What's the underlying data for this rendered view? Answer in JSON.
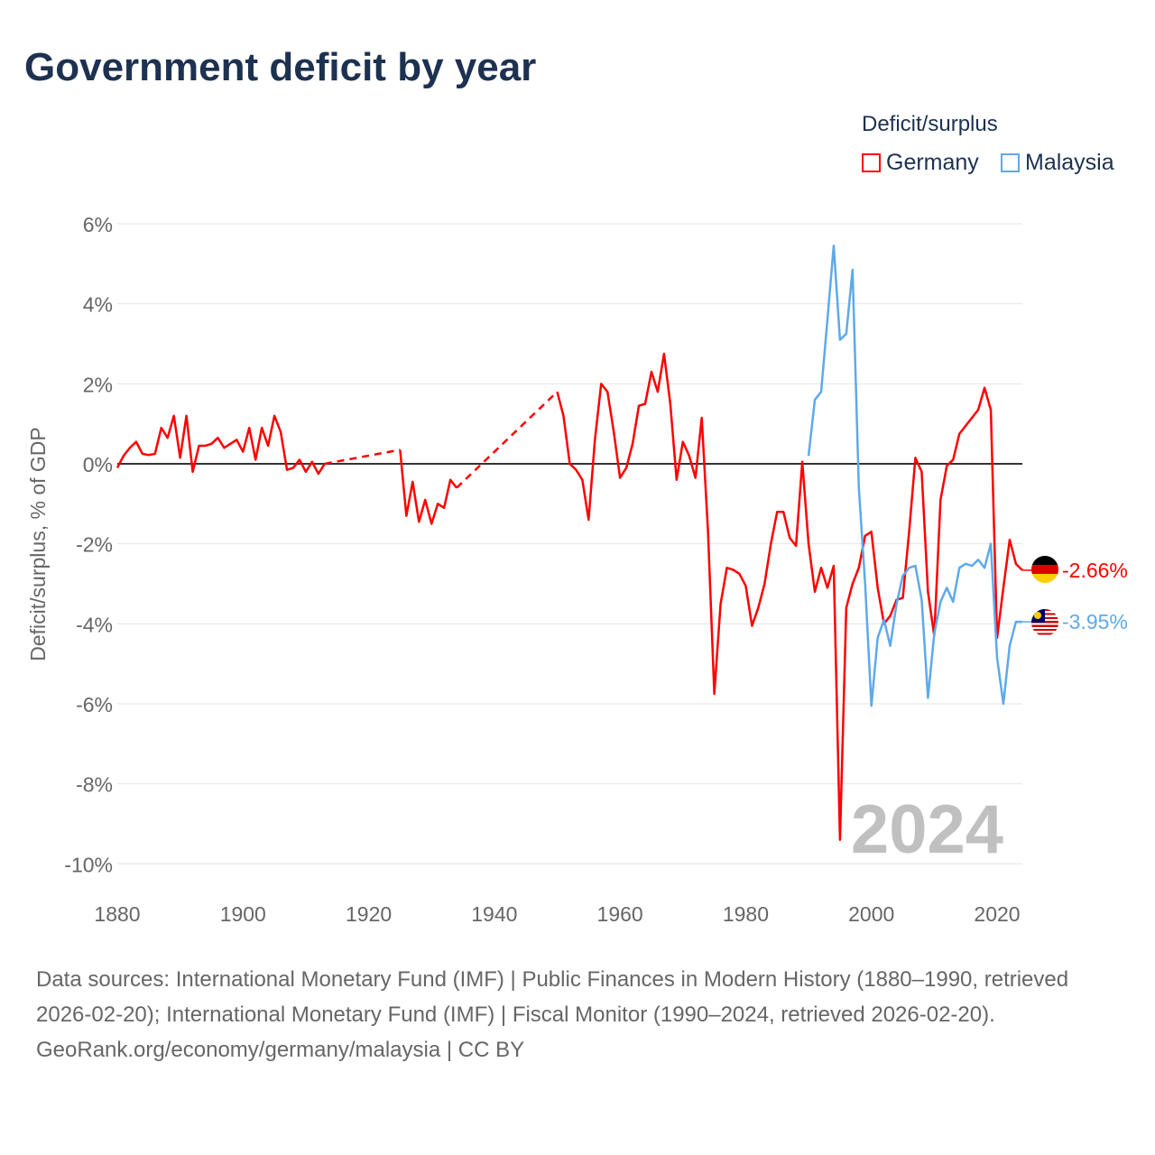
{
  "chart_data": {
    "type": "line",
    "title": "Government deficit by year",
    "ylabel": "Deficit/surplus, % of GDP",
    "xlabel": "",
    "xlim": [
      1880,
      2024
    ],
    "ylim": [
      -10,
      6
    ],
    "xticks": [
      1880,
      1900,
      1920,
      1940,
      1960,
      1980,
      2000,
      2020
    ],
    "xtick_labels": [
      "1880",
      "1900",
      "1920",
      "1940",
      "1960",
      "1980",
      "2000",
      "2020"
    ],
    "yticks": [
      6,
      4,
      2,
      0,
      -2,
      -4,
      -6,
      -8,
      -10
    ],
    "ytick_labels": [
      "6%",
      "4%",
      "2%",
      "0%",
      "-2%",
      "-4%",
      "-6%",
      "-8%",
      "-10%"
    ],
    "grid": true,
    "legend_title": "Deficit/surplus",
    "legend_placement": "top-right",
    "year_label": "2024",
    "series": [
      {
        "name": "Germany",
        "color": "#ff0000",
        "end_label": "-2.66%",
        "x": [
          1880,
          1881,
          1882,
          1883,
          1884,
          1885,
          1886,
          1887,
          1888,
          1889,
          1890,
          1891,
          1892,
          1893,
          1894,
          1895,
          1896,
          1897,
          1898,
          1899,
          1900,
          1901,
          1902,
          1903,
          1904,
          1905,
          1906,
          1907,
          1908,
          1909,
          1910,
          1911,
          1912,
          1913,
          1925,
          1926,
          1927,
          1928,
          1929,
          1930,
          1931,
          1932,
          1933,
          1934,
          1950,
          1951,
          1952,
          1953,
          1954,
          1955,
          1956,
          1957,
          1958,
          1959,
          1960,
          1961,
          1962,
          1963,
          1964,
          1965,
          1966,
          1967,
          1968,
          1969,
          1970,
          1971,
          1972,
          1973,
          1974,
          1975,
          1976,
          1977,
          1978,
          1979,
          1980,
          1981,
          1982,
          1983,
          1984,
          1985,
          1986,
          1987,
          1988,
          1989,
          1990,
          1991,
          1992,
          1993,
          1994,
          1995,
          1996,
          1997,
          1998,
          1999,
          2000,
          2001,
          2002,
          2003,
          2004,
          2005,
          2006,
          2007,
          2008,
          2009,
          2010,
          2011,
          2012,
          2013,
          2014,
          2015,
          2016,
          2017,
          2018,
          2019,
          2020,
          2021,
          2022,
          2023,
          2024
        ],
        "y": [
          -0.1,
          0.2,
          0.4,
          0.55,
          0.25,
          0.22,
          0.25,
          0.9,
          0.65,
          1.2,
          0.15,
          1.2,
          -0.2,
          0.45,
          0.45,
          0.5,
          0.65,
          0.4,
          0.5,
          0.6,
          0.3,
          0.9,
          0.1,
          0.9,
          0.45,
          1.2,
          0.8,
          -0.15,
          -0.1,
          0.1,
          -0.2,
          0.05,
          -0.25,
          0.0,
          0.35,
          -1.3,
          -0.45,
          -1.45,
          -0.9,
          -1.5,
          -1.0,
          -1.1,
          -0.4,
          -0.6,
          1.8,
          1.2,
          0.0,
          -0.15,
          -0.4,
          -1.4,
          0.6,
          2.0,
          1.8,
          0.8,
          -0.35,
          -0.1,
          0.5,
          1.45,
          1.5,
          2.3,
          1.8,
          2.75,
          1.5,
          -0.4,
          0.55,
          0.2,
          -0.35,
          1.15,
          -1.7,
          -5.75,
          -3.5,
          -2.6,
          -2.65,
          -2.75,
          -3.05,
          -4.05,
          -3.6,
          -3.0,
          -2.0,
          -1.2,
          -1.2,
          -1.85,
          -2.05,
          0.05,
          -2.0,
          -3.2,
          -2.6,
          -3.1,
          -2.55,
          -9.4,
          -3.6,
          -3.0,
          -2.6,
          -1.8,
          -1.7,
          -3.1,
          -4.0,
          -3.8,
          -3.4,
          -3.35,
          -1.7,
          0.15,
          -0.2,
          -3.2,
          -4.3,
          -0.9,
          -0.05,
          0.1,
          0.75,
          0.95,
          1.15,
          1.35,
          1.9,
          1.35,
          -4.35,
          -3.1,
          -1.9,
          -2.5,
          -2.66
        ]
      },
      {
        "name": "Malaysia",
        "color": "#5ea9ea",
        "end_label": "-3.95%",
        "x": [
          1990,
          1991,
          1992,
          1993,
          1994,
          1995,
          1996,
          1997,
          1998,
          1999,
          2000,
          2001,
          2002,
          2003,
          2004,
          2005,
          2006,
          2007,
          2008,
          2009,
          2010,
          2011,
          2012,
          2013,
          2014,
          2015,
          2016,
          2017,
          2018,
          2019,
          2020,
          2021,
          2022,
          2023,
          2024
        ],
        "y": [
          0.2,
          1.6,
          1.8,
          3.6,
          5.45,
          3.1,
          3.25,
          4.85,
          -0.6,
          -3.0,
          -6.05,
          -4.35,
          -3.9,
          -4.55,
          -3.5,
          -2.8,
          -2.6,
          -2.55,
          -3.4,
          -5.85,
          -4.25,
          -3.45,
          -3.1,
          -3.45,
          -2.6,
          -2.5,
          -2.55,
          -2.4,
          -2.6,
          -2.0,
          -4.85,
          -6.0,
          -4.55,
          -3.95,
          -3.95
        ]
      }
    ]
  },
  "footer": {
    "sources": "Data sources: International Monetary Fund (IMF) | Public Finances in Modern History (1880–1990, retrieved 2026-02-20); International Monetary Fund (IMF) | Fiscal Monitor (1990–2024, retrieved 2026-02-20).",
    "credit": "GeoRank.org/economy/germany/malaysia | CC BY"
  }
}
